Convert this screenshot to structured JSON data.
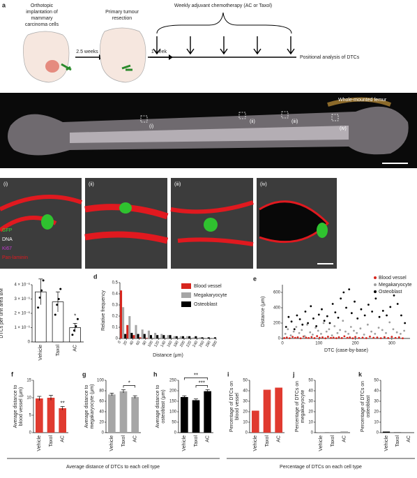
{
  "schematic": {
    "letter": "a",
    "step1": [
      "Orthotopic",
      "implantation of",
      "mammary",
      "carcinoma cells"
    ],
    "step2": "Primary tumour",
    "step2b": "resection",
    "interval1": "2.5 weeks",
    "interval2": "1 week",
    "treatment": "Weekly adjuvant chemotherapy (AC or Taxol)",
    "analysis": "Positional analysis of DTCs"
  },
  "microscopy": {
    "letter": "b",
    "femur": "Whole-mounted femur",
    "regions": [
      "(i)",
      "(ii)",
      "(iii)",
      "(iv)"
    ],
    "stains": [
      "GFP",
      "DNA",
      "Ki67",
      "Pan-laminin"
    ]
  },
  "footer": {
    "left": "Average distance of DTCs to each cell type",
    "right": "Percentage of DTCs on each cell type"
  },
  "chart_data": [
    {
      "type": "bar",
      "label": "c",
      "ylabel": [
        "DTCs per unit area BM"
      ],
      "categories": [
        "Vehicle",
        "Taxol",
        "AC"
      ],
      "values": [
        3.5e-06,
        2.8e-06,
        1e-06
      ],
      "errors": [
        9e-07,
        7e-07,
        3e-07
      ],
      "points": [
        [
          2.4e-06,
          3.1e-06,
          3.6e-06,
          4.3e-06
        ],
        [
          1.9e-06,
          2.6e-06,
          3e-06,
          3.7e-06
        ],
        [
          5e-07,
          8e-07,
          1.1e-06,
          1.6e-06
        ]
      ],
      "annotations": [
        null,
        null,
        "*"
      ],
      "color": "#ffffff",
      "edgecolor": "#000000",
      "ylim": [
        0,
        4e-06
      ],
      "yticks": [
        0,
        {
          "value": 1e-06,
          "label": "1 × 10⁻⁶"
        },
        {
          "value": 2e-06,
          "label": "2 × 10⁻⁶"
        },
        {
          "value": 3e-06,
          "label": "3 × 10⁻⁶"
        },
        {
          "value": 4e-06,
          "label": "4 × 10⁻⁶"
        }
      ]
    },
    {
      "type": "histogram",
      "label": "d",
      "ylabel": "Relative frequency",
      "xlabel": "Distance (μm)",
      "bins": [
        0,
        20,
        40,
        60,
        80,
        100,
        120,
        140,
        160,
        180,
        200,
        220,
        240,
        260,
        280,
        300
      ],
      "series": [
        {
          "name": "Blood vessel",
          "color": "#d7261e",
          "values": [
            0.43,
            0.12,
            0.03,
            0.01,
            0.005,
            0,
            0,
            0,
            0,
            0,
            0,
            0,
            0,
            0,
            0
          ]
        },
        {
          "name": "Megakaryocyte",
          "color": "#a6a6a6",
          "values": [
            0.28,
            0.2,
            0.12,
            0.08,
            0.07,
            0.05,
            0.04,
            0.03,
            0.02,
            0.02,
            0.02,
            0.01,
            0.01,
            0.005,
            0.005
          ]
        },
        {
          "name": "Osteoblast",
          "color": "#000000",
          "values": [
            0.04,
            0.05,
            0.04,
            0.04,
            0.03,
            0.03,
            0.03,
            0.03,
            0.02,
            0.02,
            0.02,
            0.02,
            0.01,
            0.01,
            0.01
          ]
        }
      ],
      "xlim": [
        0,
        300
      ],
      "xticks": [
        0,
        20,
        40,
        60,
        80,
        100,
        120,
        140,
        160,
        180,
        200,
        220,
        240,
        260,
        280,
        300
      ],
      "ylim": [
        0,
        0.5
      ],
      "yticks": [
        0,
        0.1,
        0.2,
        0.3,
        0.4,
        0.5
      ]
    },
    {
      "type": "scatter",
      "label": "e",
      "ylabel": "Distance (μm)",
      "xlabel": "DTC (case-by-base)",
      "series": [
        {
          "name": "Blood vessel",
          "color": "#d7261e",
          "x": [
            5,
            12,
            20,
            28,
            35,
            42,
            50,
            58,
            65,
            72,
            80,
            88,
            95,
            102,
            110,
            118,
            125,
            133,
            140,
            148,
            155,
            163,
            170,
            178,
            185,
            193,
            200,
            210,
            220,
            230,
            240,
            250,
            260,
            270,
            280,
            290,
            300,
            310,
            320,
            330
          ],
          "y": [
            5,
            12,
            3,
            20,
            8,
            15,
            2,
            25,
            10,
            6,
            18,
            4,
            30,
            9,
            14,
            2,
            22,
            7,
            11,
            3,
            16,
            5,
            28,
            8,
            13,
            2,
            19,
            6,
            10,
            4,
            24,
            9,
            12,
            3,
            17,
            5,
            21,
            7,
            14,
            2
          ]
        },
        {
          "name": "Megakaryocyte",
          "color": "#9e9e9e",
          "x": [
            8,
            15,
            23,
            31,
            38,
            46,
            53,
            61,
            68,
            76,
            83,
            91,
            98,
            106,
            113,
            121,
            128,
            136,
            143,
            151,
            158,
            166,
            173,
            181,
            188,
            196,
            204,
            214,
            224,
            234,
            244,
            254,
            264,
            274,
            284,
            294,
            304,
            314,
            324,
            334
          ],
          "y": [
            60,
            120,
            40,
            90,
            150,
            70,
            110,
            30,
            180,
            80,
            50,
            140,
            100,
            60,
            200,
            90,
            120,
            40,
            160,
            70,
            110,
            230,
            90,
            60,
            150,
            100,
            70,
            130,
            50,
            180,
            90,
            60,
            140,
            110,
            70,
            210,
            120,
            80,
            60,
            100
          ]
        },
        {
          "name": "Osteoblast",
          "color": "#000000",
          "x": [
            10,
            17,
            25,
            33,
            40,
            48,
            55,
            63,
            70,
            78,
            85,
            93,
            100,
            108,
            115,
            123,
            130,
            138,
            145,
            153,
            160,
            168,
            175,
            183,
            190,
            198,
            206,
            216,
            226,
            236,
            246,
            256,
            266,
            276,
            286,
            296,
            306,
            316,
            326,
            336
          ],
          "y": [
            150,
            280,
            220,
            120,
            300,
            250,
            180,
            350,
            200,
            420,
            260,
            160,
            310,
            380,
            230,
            290,
            200,
            450,
            340,
            270,
            520,
            600,
            400,
            640,
            330,
            480,
            260,
            380,
            300,
            440,
            350,
            520,
            280,
            360,
            300,
            410,
            560,
            450,
            300,
            200
          ]
        }
      ],
      "xlim": [
        0,
        350
      ],
      "xticks": [
        0,
        100,
        200,
        300
      ],
      "ylim": [
        0,
        700
      ],
      "yticks": [
        0,
        200,
        400,
        600
      ]
    },
    {
      "type": "bar",
      "label": "f",
      "ylabel": [
        "Average distance to",
        "blood vessel (μm)"
      ],
      "categories": [
        "Vehicle",
        "Taxol",
        "AC"
      ],
      "values": [
        9.8,
        10.0,
        7.0
      ],
      "errors": [
        0.6,
        0.7,
        0.5
      ],
      "annotations": [
        null,
        null,
        "**"
      ],
      "color": "#e03a2f",
      "ylim": [
        0,
        15
      ],
      "yticks": [
        0,
        5,
        10,
        15
      ]
    },
    {
      "type": "bar",
      "label": "g",
      "ylabel": [
        "Average distance to",
        "megakaryocyte (μm)"
      ],
      "categories": [
        "Vehicle",
        "Taxol",
        "AC"
      ],
      "values": [
        73,
        79,
        68
      ],
      "errors": [
        2.5,
        3,
        2.5
      ],
      "brackets": [
        {
          "from": "Taxol",
          "to": "AC",
          "text": "*"
        }
      ],
      "color": "#a6a6a6",
      "ylim": [
        0,
        100
      ],
      "yticks": [
        0,
        20,
        40,
        60,
        80,
        100
      ]
    },
    {
      "type": "bar",
      "label": "h",
      "ylabel": [
        "Average distance to",
        "osteoblast (μm)"
      ],
      "categories": [
        "Vehicle",
        "Taxol",
        "AC"
      ],
      "values": [
        170,
        155,
        198
      ],
      "errors": [
        6,
        6,
        7
      ],
      "brackets": [
        {
          "from": "Taxol",
          "to": "AC",
          "text": "***"
        },
        {
          "from": "Vehicle",
          "to": "AC",
          "text": "**"
        }
      ],
      "color": "#000000",
      "ylim": [
        0,
        250
      ],
      "yticks": [
        0,
        50,
        100,
        150,
        200,
        250
      ]
    },
    {
      "type": "bar",
      "label": "i",
      "ylabel": [
        "Percentage of DTCs on",
        "blood vessel"
      ],
      "categories": [
        "Vehicle",
        "Taxol",
        "AC"
      ],
      "values": [
        21,
        41,
        43
      ],
      "color": "#e03a2f",
      "ylim": [
        0,
        50
      ],
      "yticks": [
        0,
        10,
        20,
        30,
        40,
        50
      ]
    },
    {
      "type": "bar",
      "label": "j",
      "ylabel": [
        "Percentage of DTCs on",
        "megakaryocyte"
      ],
      "categories": [
        "Vehicle",
        "Taxol",
        "AC"
      ],
      "values": [
        0.5,
        0.6,
        1.2
      ],
      "color": "#a6a6a6",
      "ylim": [
        0,
        50
      ],
      "yticks": [
        0,
        10,
        20,
        30,
        40,
        50
      ]
    },
    {
      "type": "bar",
      "label": "k",
      "ylabel": [
        "Percentage of DTCs on",
        "osteoblast"
      ],
      "categories": [
        "Vehicle",
        "Taxol",
        "AC"
      ],
      "values": [
        1.0,
        0.3,
        0
      ],
      "color": "#000000",
      "ylim": [
        0,
        50
      ],
      "yticks": [
        0,
        10,
        20,
        30,
        40,
        50
      ]
    }
  ]
}
